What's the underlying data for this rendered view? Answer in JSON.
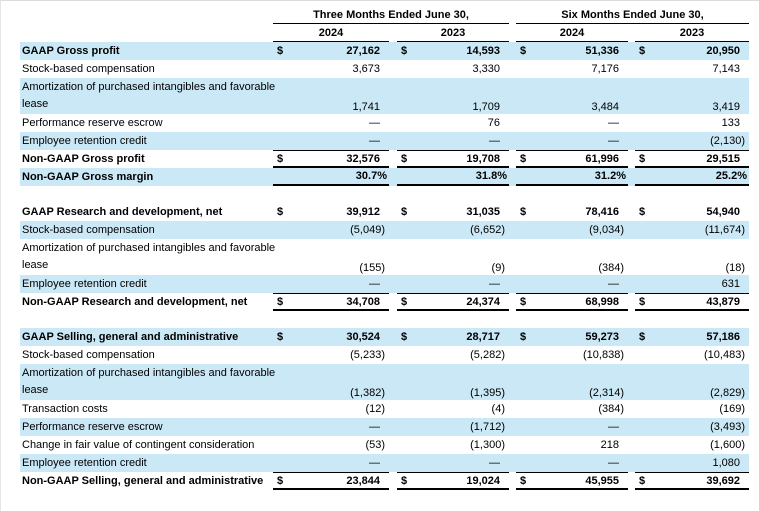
{
  "table": {
    "currency_symbol": "$",
    "header": {
      "group1": "Three Months Ended June 30,",
      "group2": "Six Months Ended June 30,",
      "years": [
        "2024",
        "2023",
        "2024",
        "2023"
      ]
    },
    "sections": [
      {
        "rows": [
          {
            "label": "GAAP Gross profit",
            "bold": true,
            "shaded": true,
            "dollar": true,
            "values": [
              "27,162",
              "14,593",
              "51,336",
              "20,950"
            ]
          },
          {
            "label": "Stock-based compensation",
            "shaded": false,
            "values": [
              "3,673",
              "3,330",
              "7,176",
              "7,143"
            ]
          },
          {
            "label": "Amortization of purchased intangibles and favorable lease",
            "label_lines": [
              "Amortization of purchased intangibles and favorable",
              "lease"
            ],
            "shaded": true,
            "values": [
              "1,741",
              "1,709",
              "3,484",
              "3,419"
            ]
          },
          {
            "label": "Performance reserve escrow",
            "shaded": false,
            "values": [
              "—",
              "76",
              "—",
              "133"
            ]
          },
          {
            "label": "Employee retention credit",
            "shaded": true,
            "values": [
              "—",
              "—",
              "—",
              "(2,130)"
            ]
          },
          {
            "label": "Non-GAAP Gross profit",
            "bold": true,
            "shaded": false,
            "dollar": true,
            "rule_above": true,
            "thick_below": true,
            "values": [
              "32,576",
              "19,708",
              "61,996",
              "29,515"
            ]
          },
          {
            "label": "Non-GAAP Gross margin",
            "bold": true,
            "shaded": true,
            "thick_below": true,
            "values": [
              "30.7%",
              "31.8%",
              "31.2%",
              "25.2%"
            ]
          }
        ]
      },
      {
        "rows": [
          {
            "label": "GAAP Research and development, net",
            "bold": true,
            "shaded": false,
            "dollar": true,
            "values": [
              "39,912",
              "31,035",
              "78,416",
              "54,940"
            ]
          },
          {
            "label": "Stock-based compensation",
            "shaded": true,
            "values": [
              "(5,049)",
              "(6,652)",
              "(9,034)",
              "(11,674)"
            ]
          },
          {
            "label": "Amortization of purchased intangibles and favorable lease",
            "label_lines": [
              "Amortization of purchased intangibles and favorable",
              "lease"
            ],
            "shaded": false,
            "values": [
              "(155)",
              "(9)",
              "(384)",
              "(18)"
            ]
          },
          {
            "label": "Employee retention credit",
            "shaded": true,
            "values": [
              "—",
              "—",
              "—",
              "631"
            ]
          },
          {
            "label": "Non-GAAP Research and development, net",
            "bold": true,
            "shaded": false,
            "dollar": true,
            "rule_above": true,
            "thick_below": true,
            "values": [
              "34,708",
              "24,374",
              "68,998",
              "43,879"
            ]
          }
        ]
      },
      {
        "rows": [
          {
            "label": "GAAP Selling, general and administrative",
            "bold": true,
            "shaded": true,
            "dollar": true,
            "values": [
              "30,524",
              "28,717",
              "59,273",
              "57,186"
            ]
          },
          {
            "label": "Stock-based compensation",
            "shaded": false,
            "values": [
              "(5,233)",
              "(5,282)",
              "(10,838)",
              "(10,483)"
            ]
          },
          {
            "label": "Amortization of purchased intangibles and favorable lease",
            "label_lines": [
              "Amortization of purchased intangibles and favorable",
              "lease"
            ],
            "shaded": true,
            "values": [
              "(1,382)",
              "(1,395)",
              "(2,314)",
              "(2,829)"
            ]
          },
          {
            "label": "Transaction costs",
            "shaded": false,
            "values": [
              "(12)",
              "(4)",
              "(384)",
              "(169)"
            ]
          },
          {
            "label": "Performance reserve escrow",
            "shaded": true,
            "values": [
              "—",
              "(1,712)",
              "—",
              "(3,493)"
            ]
          },
          {
            "label": "Change in fair value of contingent consideration",
            "shaded": false,
            "values": [
              "(53)",
              "(1,300)",
              "218",
              "(1,600)"
            ]
          },
          {
            "label": "Employee retention credit",
            "shaded": true,
            "values": [
              "—",
              "—",
              "—",
              "1,080"
            ]
          },
          {
            "label": "Non-GAAP Selling, general and administrative",
            "bold": true,
            "shaded": false,
            "dollar": true,
            "rule_above": true,
            "thick_below": true,
            "values": [
              "23,844",
              "19,024",
              "45,955",
              "39,692"
            ]
          }
        ]
      }
    ]
  }
}
